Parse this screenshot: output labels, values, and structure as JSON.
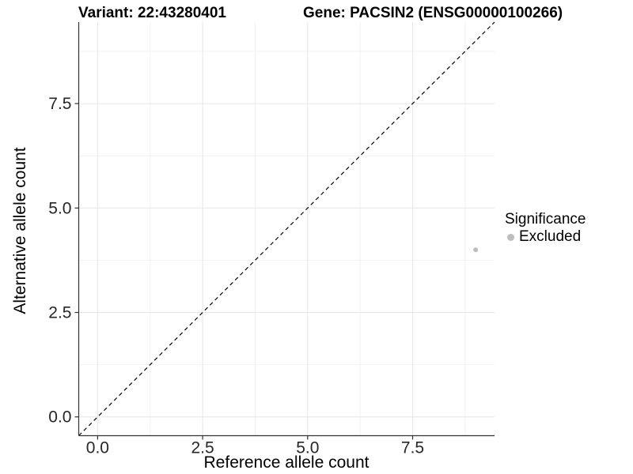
{
  "colors": {
    "background": "#ffffff",
    "grid_major": "#e6e6e6",
    "grid_minor": "#f2f2f2",
    "axis_line": "#333333",
    "tick_text": "#262626",
    "title_text": "#000000",
    "point": "#bdbdbd",
    "reference_line": "#000000"
  },
  "chart_data": {
    "type": "scatter",
    "title_left": "Variant: 22:43280401",
    "title_right": "Gene: PACSIN2 (ENSG00000100266)",
    "xlabel": "Reference allele count",
    "ylabel": "Alternative allele count",
    "xlim": [
      -0.45,
      9.45
    ],
    "ylim": [
      -0.45,
      9.45
    ],
    "x_ticks": {
      "values": [
        0,
        2.5,
        5,
        7.5
      ],
      "labels": [
        "0.0",
        "2.5",
        "5.0",
        "7.5"
      ]
    },
    "y_ticks": {
      "values": [
        0,
        2.5,
        5,
        7.5
      ],
      "labels": [
        "0.0",
        "2.5",
        "5.0",
        "7.5"
      ]
    },
    "x_minor": [
      1.25,
      3.75,
      6.25,
      8.75
    ],
    "y_minor": [
      1.25,
      3.75,
      6.25,
      8.75
    ],
    "grid": {
      "major": true,
      "minor": true
    },
    "points": [
      {
        "x": 9,
        "y": 4,
        "series": "Excluded",
        "color": "#bdbdbd",
        "radius": 3
      }
    ],
    "identity_line": {
      "shown": true,
      "style": "dashed",
      "slope": 1,
      "intercept": 0,
      "color": "#000000"
    },
    "legend": {
      "title": "Significance",
      "position": "right",
      "items": [
        {
          "label": "Excluded",
          "color": "#bdbdbd",
          "marker": "circle"
        }
      ]
    }
  }
}
